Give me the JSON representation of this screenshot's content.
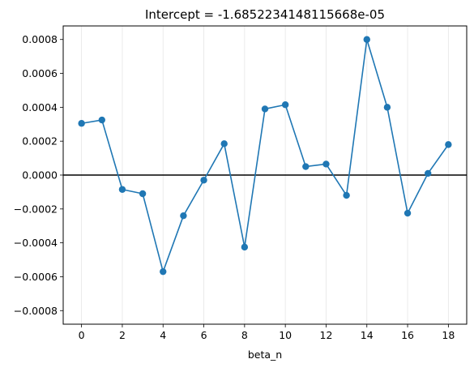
{
  "chart_data": {
    "type": "line",
    "title": "Intercept = -1.6852234148115668e-05",
    "xlabel": "beta_n",
    "ylabel": "",
    "xlim": [
      -0.9,
      18.9
    ],
    "ylim": [
      -0.00088,
      0.00088
    ],
    "xticks": [
      "0",
      "2",
      "4",
      "6",
      "8",
      "10",
      "12",
      "14",
      "16",
      "18"
    ],
    "xtick_values": [
      0,
      2,
      4,
      6,
      8,
      10,
      12,
      14,
      16,
      18
    ],
    "yticks": [
      "−0.0008",
      "−0.0006",
      "−0.0004",
      "−0.0002",
      "0.0000",
      "0.0002",
      "0.0004",
      "0.0006",
      "0.0008"
    ],
    "ytick_values": [
      -0.0008,
      -0.0006,
      -0.0004,
      -0.0002,
      0,
      0.0002,
      0.0004,
      0.0006,
      0.0008
    ],
    "vertical_gridlines": true,
    "horizontal_reference_line": 0,
    "series": [
      {
        "color": "#1f77b4",
        "x": [
          0,
          1,
          2,
          3,
          4,
          5,
          6,
          7,
          8,
          9,
          10,
          11,
          12,
          13,
          14,
          15,
          16,
          17,
          18
        ],
        "values": [
          0.000305,
          0.000325,
          -8.5e-05,
          -0.00011,
          -0.00057,
          -0.00024,
          -3e-05,
          0.000185,
          -0.000425,
          0.00039,
          0.000415,
          5e-05,
          6.5e-05,
          -0.00012,
          0.0008,
          0.0004,
          -0.000225,
          1e-05,
          0.00018
        ]
      }
    ]
  }
}
